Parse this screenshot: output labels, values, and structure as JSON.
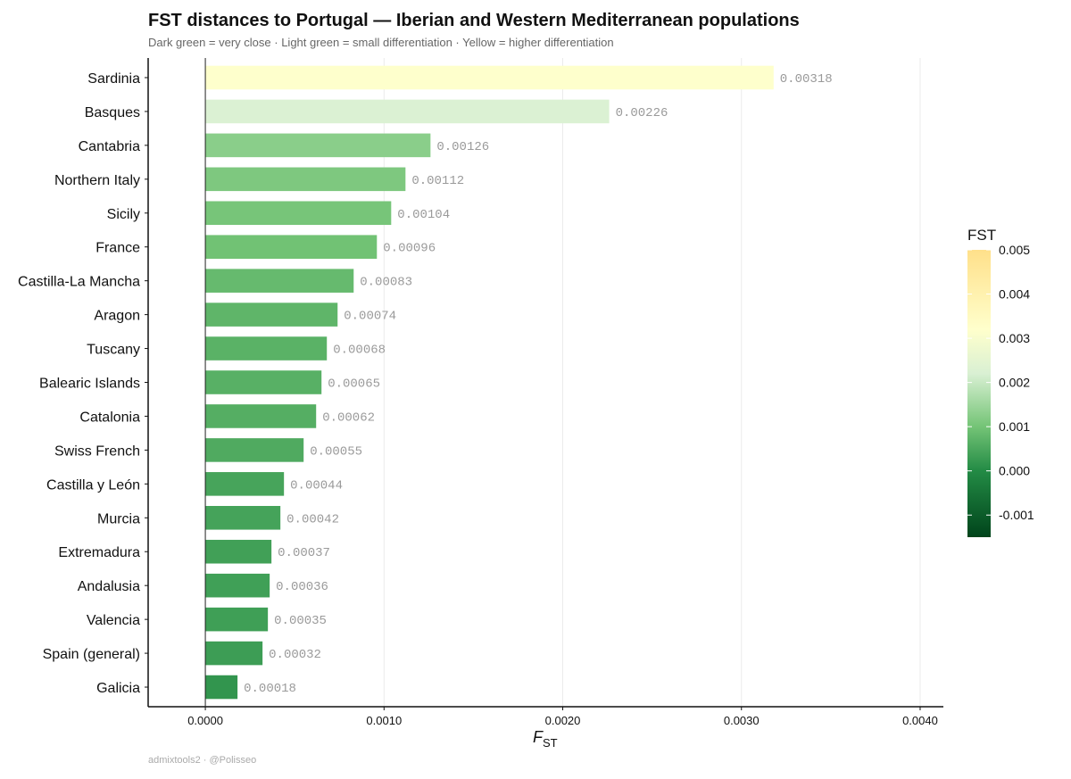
{
  "chart_data": {
    "type": "bar",
    "orientation": "horizontal",
    "title": "FST distances to Portugal — Iberian and Western Mediterranean populations",
    "subtitle": "Dark green = very close · Light green = small differentiation · Yellow = higher differentiation",
    "xlabel_main": "F",
    "xlabel_sub": "ST",
    "ylabel": "",
    "caption": "admixtools2 · @Polisseo",
    "xlim": [
      -0.00032,
      0.00413
    ],
    "x_ticks": [
      0,
      0.001,
      0.002,
      0.003,
      0.004
    ],
    "x_tick_labels": [
      "0.0000",
      "0.0010",
      "0.0020",
      "0.0030",
      "0.0040"
    ],
    "grid": "vertical major gridlines",
    "categories": [
      "Sardinia",
      "Basques",
      "Cantabria",
      "Northern Italy",
      "Sicily",
      "France",
      "Castilla-La Mancha",
      "Aragon",
      "Tuscany",
      "Balearic Islands",
      "Catalonia",
      "Swiss French",
      "Castilla y León",
      "Murcia",
      "Extremadura",
      "Andalusia",
      "Valencia",
      "Spain (general)",
      "Galicia"
    ],
    "values": [
      0.00318,
      0.00226,
      0.00126,
      0.00112,
      0.00104,
      0.00096,
      0.00083,
      0.00074,
      0.00068,
      0.00065,
      0.00062,
      0.00055,
      0.00044,
      0.00042,
      0.00037,
      0.00036,
      0.00035,
      0.00032,
      0.00018
    ],
    "value_labels": [
      "0.00318",
      "0.00226",
      "0.00126",
      "0.00112",
      "0.00104",
      "0.00096",
      "0.00083",
      "0.00074",
      "0.00068",
      "0.00065",
      "0.00062",
      "0.00055",
      "0.00044",
      "0.00042",
      "0.00037",
      "0.00036",
      "0.00035",
      "0.00032",
      "0.00018"
    ],
    "legend": {
      "title": "FST",
      "position": "right",
      "range": [
        -0.0015,
        0.005
      ],
      "ticks": [
        0.005,
        0.004,
        0.003,
        0.002,
        0.001,
        0.0,
        -0.001
      ],
      "tick_labels": [
        "0.005",
        "0.004",
        "0.003",
        "0.002",
        "0.001",
        "0.000",
        "-0.001"
      ],
      "colors": [
        "#00441b",
        "#238b45",
        "#74c476",
        "#d9f0d3",
        "#ffffcc",
        "#ffe08a"
      ],
      "color_stops": [
        -0.0015,
        0.0,
        0.001,
        0.0022,
        0.0032,
        0.005
      ]
    }
  }
}
